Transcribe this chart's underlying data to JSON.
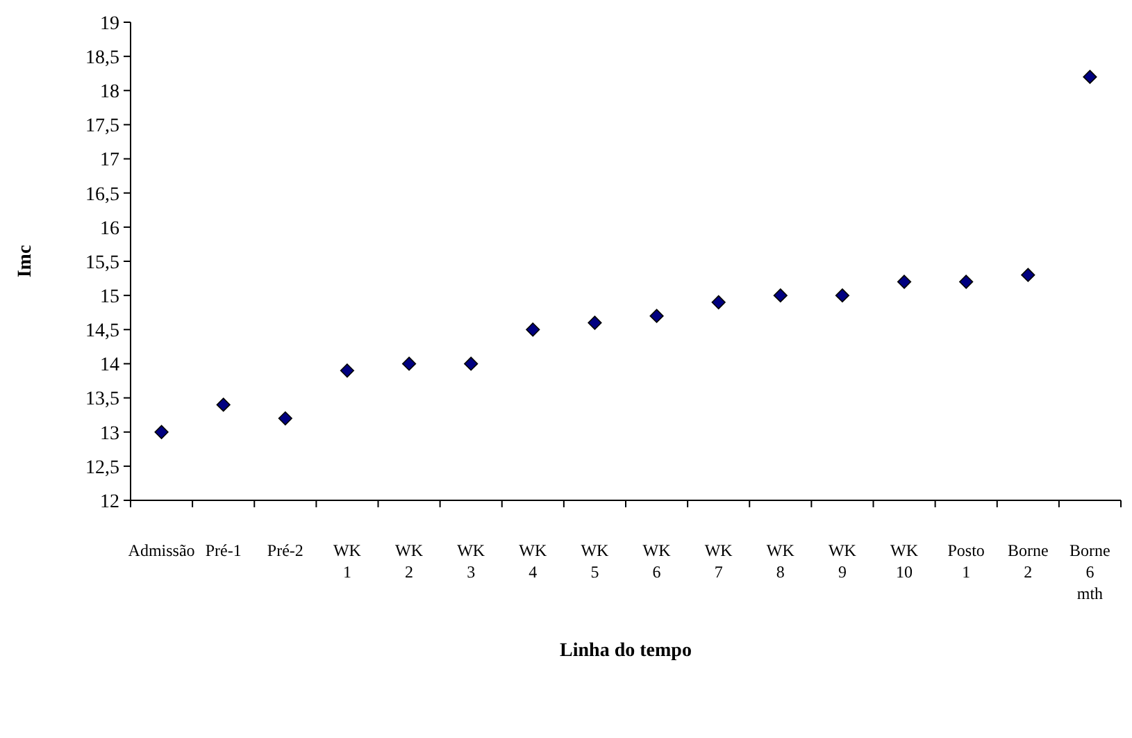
{
  "chart_data": {
    "type": "scatter",
    "xlabel": "Linha do tempo",
    "ylabel": "Imc",
    "categories": [
      "Admissão",
      "Pré-1",
      "Pré-2",
      "WK 1",
      "WK 2",
      "WK 3",
      "WK 4",
      "WK 5",
      "WK 6",
      "WK 7",
      "WK 8",
      "WK 9",
      "WK 10",
      "Posto 1",
      "Borne 2",
      "Borne 6 mth"
    ],
    "series": [
      {
        "color": "#000080",
        "values": [
          13,
          13.4,
          13.2,
          13.9,
          14,
          14,
          14.5,
          14.6,
          14.7,
          14.9,
          15,
          15,
          15.2,
          15.2,
          15.3,
          18.2
        ]
      }
    ],
    "ylim": [
      12,
      19
    ],
    "yticks": [
      12,
      {
        "value": 12.5,
        "label": "12,5"
      },
      13,
      {
        "value": 13.5,
        "label": "13,5"
      },
      14,
      {
        "value": 14.5,
        "label": "14,5"
      },
      15,
      {
        "value": 15.5,
        "label": "15,5"
      },
      16,
      {
        "value": 16.5,
        "label": "16,5"
      },
      17,
      {
        "value": 17.5,
        "label": "17,5"
      },
      18,
      {
        "value": 18.5,
        "label": "18,5"
      },
      19
    ],
    "marker": "diamond",
    "grid": false
  }
}
